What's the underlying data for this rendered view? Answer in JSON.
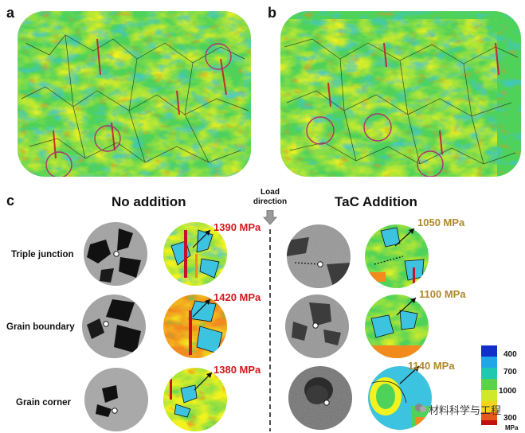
{
  "panels": {
    "a": "a",
    "b": "b",
    "c": "c"
  },
  "headers": {
    "no_addition": "No addition",
    "tac_addition": "TaC Addition",
    "load_direction": "Load direction"
  },
  "rows": [
    {
      "label": "Triple junction",
      "no_addition_value": "1390 MPa",
      "tac_value": "1050 MPa"
    },
    {
      "label": "Grain boundary",
      "no_addition_value": "1420 MPa",
      "tac_value": "1100 MPa"
    },
    {
      "label": "Grain corner",
      "no_addition_value": "1380 MPa",
      "tac_value": "1140 MPa"
    }
  ],
  "colors": {
    "no_addition_value": "#d4171d",
    "tac_value": "#b0882a",
    "map_green": "#3fd05a",
    "map_yellow": "#f2f21e",
    "map_cyan": "#3cc3df",
    "map_orange": "#f28a1e",
    "map_red": "#c8102e"
  },
  "legend": {
    "items": [
      {
        "label": "400",
        "color": "#1030c8"
      },
      {
        "label": "",
        "color": "#22a6e8"
      },
      {
        "label": "700",
        "color": "#20c8b0"
      },
      {
        "label": "",
        "color": "#5ad24a"
      },
      {
        "label": "1000",
        "color": "#cfe82c"
      },
      {
        "label": "",
        "color": "#f5d21c"
      },
      {
        "label": "300",
        "color": "#e45a1a"
      },
      {
        "label": "",
        "color": "#c01010"
      }
    ],
    "unit": "MPa"
  },
  "watermark": "材料科学与工程"
}
